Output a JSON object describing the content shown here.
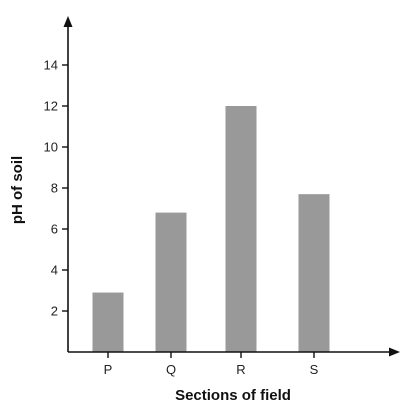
{
  "chart_data": {
    "type": "bar",
    "categories": [
      "P",
      "Q",
      "R",
      "S"
    ],
    "values": [
      2.9,
      6.8,
      12.0,
      7.7
    ],
    "xlabel": "Sections of field",
    "ylabel": "pH of soil",
    "yticks": [
      "2",
      "4",
      "6",
      "8",
      "10",
      "12",
      "14"
    ],
    "ylim": [
      0,
      16
    ],
    "grid": false,
    "bar_color": "#999999",
    "axis_color": "#111111"
  }
}
